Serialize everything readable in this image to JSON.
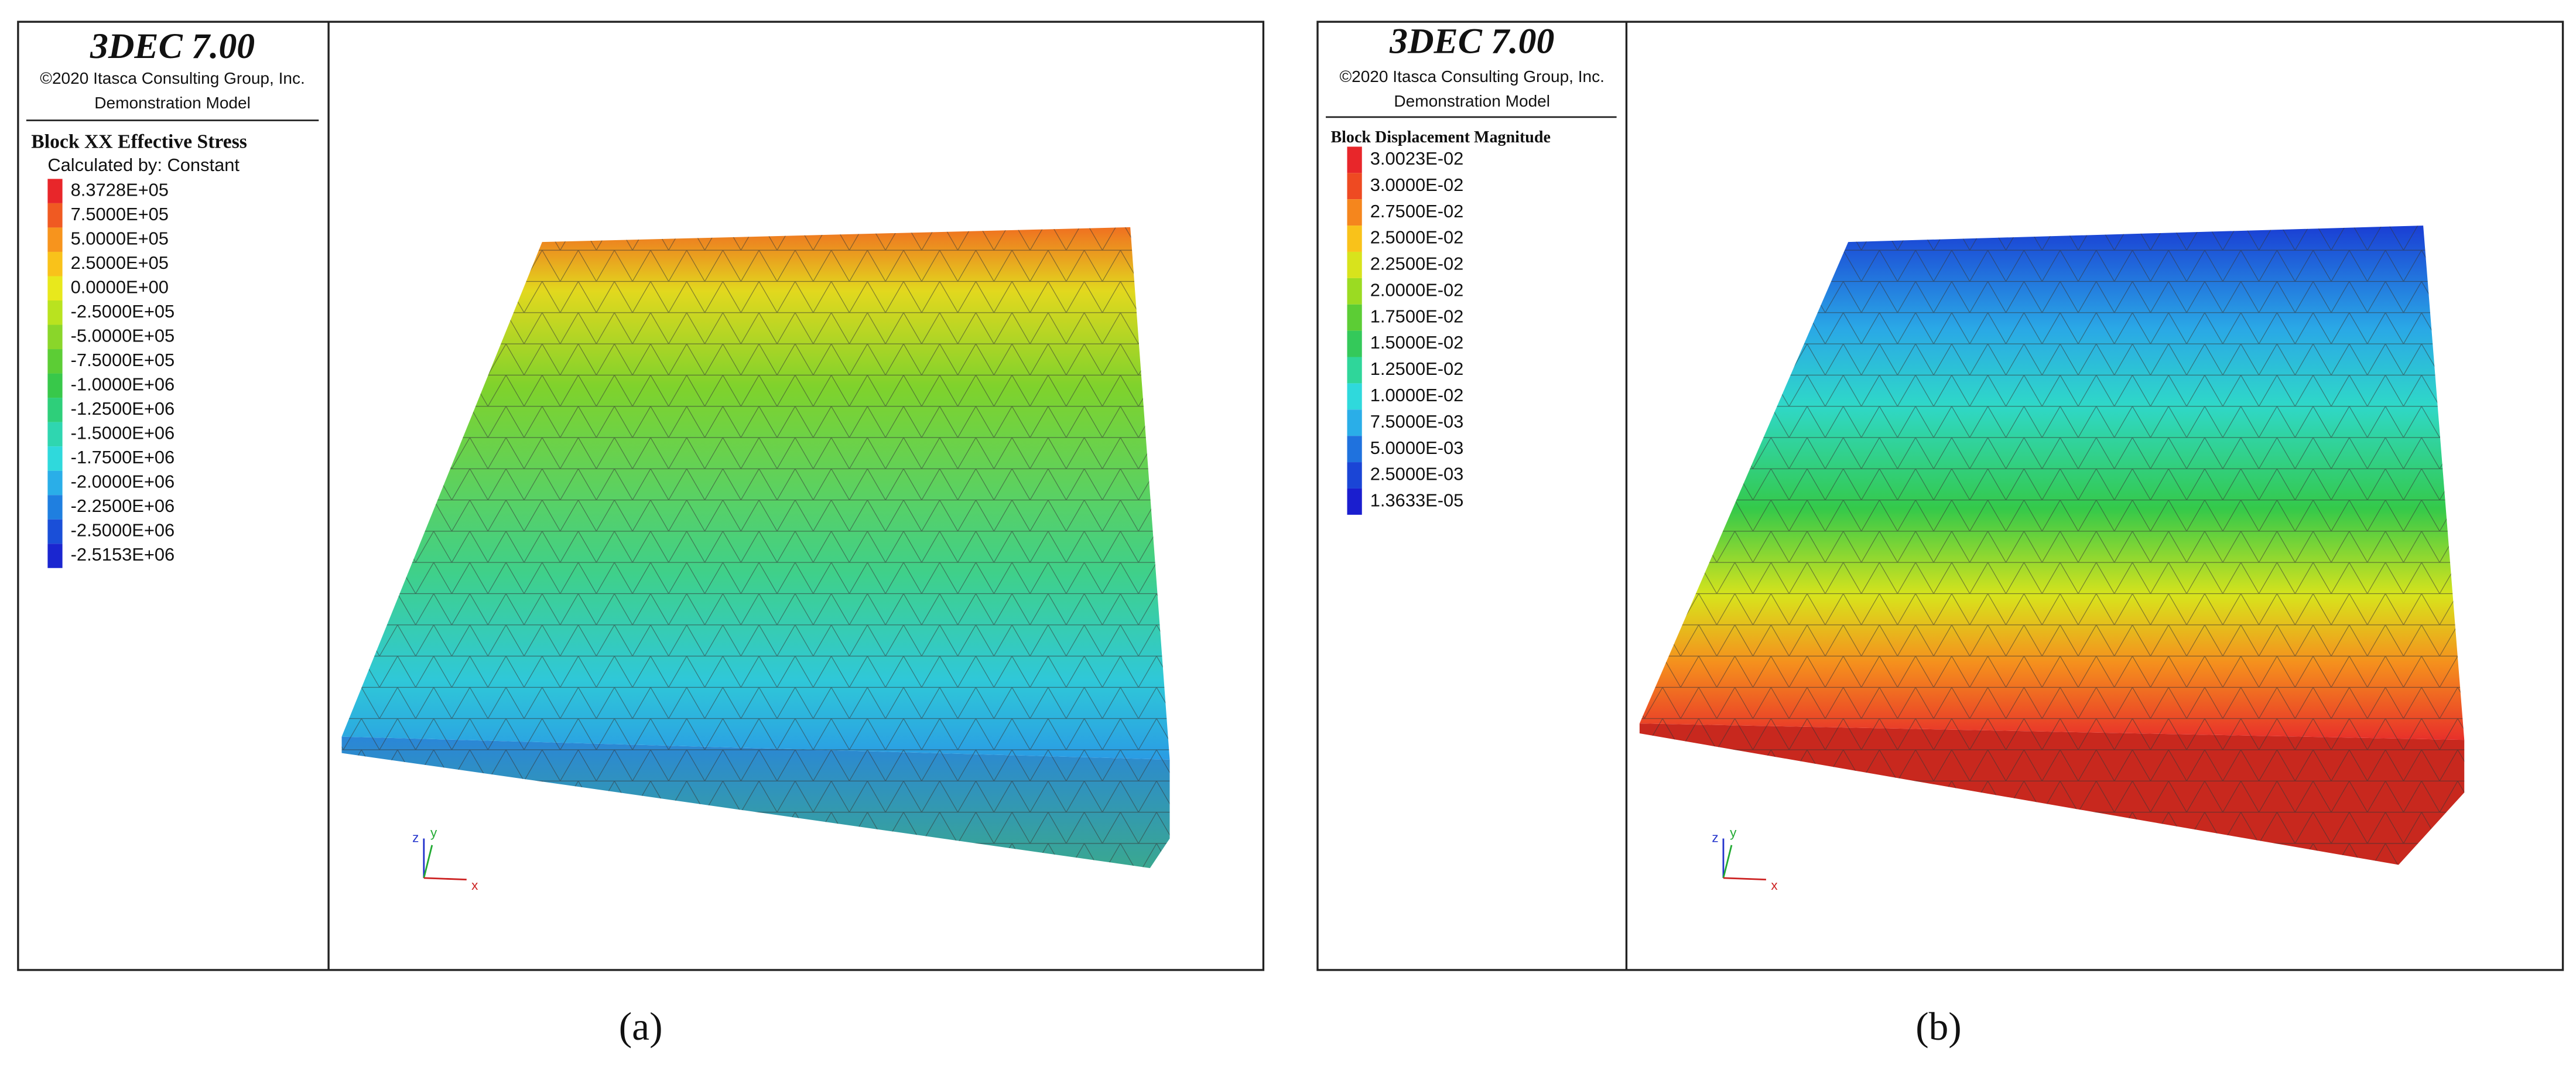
{
  "panels": [
    {
      "app_title": "3DEC 7.00",
      "copyright": "©2020 Itasca Consulting Group, Inc.",
      "model": "Demonstration Model",
      "legend_title": "Block XX Effective Stress",
      "legend_subtitle": "Calculated by: Constant",
      "legend": [
        {
          "label": "8.3728E+05",
          "color": "#e8262a"
        },
        {
          "label": "7.5000E+05",
          "color": "#f05a22"
        },
        {
          "label": "5.0000E+05",
          "color": "#f7941d"
        },
        {
          "label": "2.5000E+05",
          "color": "#f9c21a"
        },
        {
          "label": "0.0000E+00",
          "color": "#e8e81c"
        },
        {
          "label": "-2.5000E+05",
          "color": "#b9e31f"
        },
        {
          "label": "-5.0000E+05",
          "color": "#8ad62a"
        },
        {
          "label": "-7.5000E+05",
          "color": "#5ccd35"
        },
        {
          "label": "-1.0000E+06",
          "color": "#38c84a"
        },
        {
          "label": "-1.2500E+06",
          "color": "#2ecf7a"
        },
        {
          "label": "-1.5000E+06",
          "color": "#2fd6b0"
        },
        {
          "label": "-1.7500E+06",
          "color": "#2fd9dc"
        },
        {
          "label": "-2.0000E+06",
          "color": "#2aaee8"
        },
        {
          "label": "-2.2500E+06",
          "color": "#1f7fe0"
        },
        {
          "label": "-2.5000E+06",
          "color": "#1a4fd8"
        },
        {
          "label": "-2.5153E+06",
          "color": "#1a26d0"
        }
      ],
      "axes": {
        "z": "z",
        "y": "y",
        "x": "x"
      },
      "caption": "(a)"
    },
    {
      "app_title": "3DEC 7.00",
      "copyright": "©2020 Itasca Consulting Group, Inc.",
      "model": "Demonstration Model",
      "legend_title": "Block Displacement Magnitude",
      "legend": [
        {
          "label": "3.0023E-02",
          "color": "#e8262a"
        },
        {
          "label": "3.0000E-02",
          "color": "#ee4a22"
        },
        {
          "label": "2.7500E-02",
          "color": "#f5861d"
        },
        {
          "label": "2.5000E-02",
          "color": "#f9c21a"
        },
        {
          "label": "2.2500E-02",
          "color": "#d8e31c"
        },
        {
          "label": "2.0000E-02",
          "color": "#9bdb22"
        },
        {
          "label": "1.7500E-02",
          "color": "#5ccd35"
        },
        {
          "label": "1.5000E-02",
          "color": "#34c95a"
        },
        {
          "label": "1.2500E-02",
          "color": "#2fd69a"
        },
        {
          "label": "1.0000E-02",
          "color": "#2fd9dc"
        },
        {
          "label": "7.5000E-03",
          "color": "#2aaee8"
        },
        {
          "label": "5.0000E-03",
          "color": "#1f72de"
        },
        {
          "label": "2.5000E-03",
          "color": "#1a45d6"
        },
        {
          "label": "1.3633E-05",
          "color": "#1a1ecf"
        }
      ],
      "axes": {
        "z": "z",
        "y": "y",
        "x": "x"
      },
      "caption": "(b)"
    }
  ]
}
